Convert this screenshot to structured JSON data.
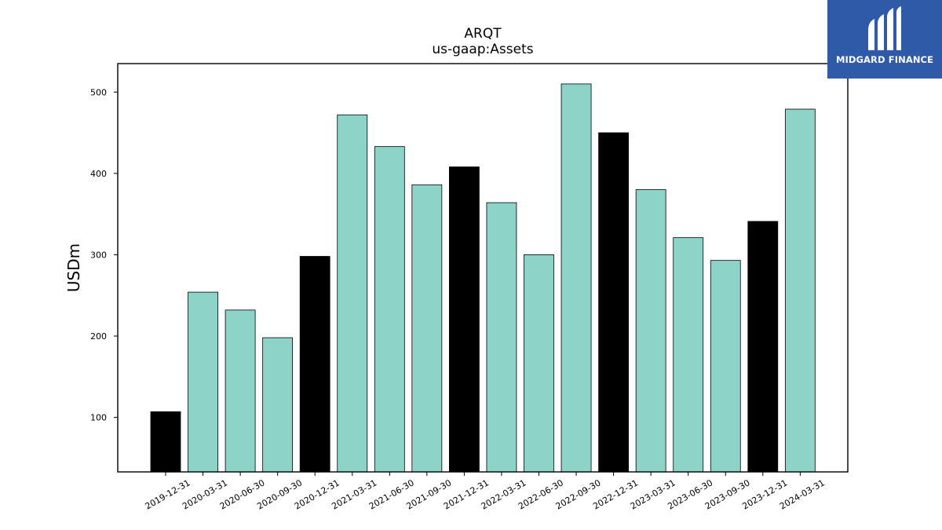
{
  "brand": {
    "name": "MIDGARD FINANCE",
    "bg_color": "#2e5aa8"
  },
  "chart_data": {
    "type": "bar",
    "title": "ARQT",
    "subtitle": "us-gaap:Assets",
    "xlabel": "",
    "ylabel": "USDm",
    "ylim": [
      33,
      535
    ],
    "yticks": [
      100,
      200,
      300,
      400,
      500
    ],
    "grid": false,
    "legend": "none",
    "colors": {
      "regular": "#8dd3c7",
      "year_end": "#000000",
      "edge": "#000000"
    },
    "categories": [
      "2019-12-31",
      "2020-03-31",
      "2020-06-30",
      "2020-09-30",
      "2020-12-31",
      "2021-03-31",
      "2021-06-30",
      "2021-09-30",
      "2021-12-31",
      "2022-03-31",
      "2022-06-30",
      "2022-09-30",
      "2022-12-31",
      "2023-03-31",
      "2023-06-30",
      "2023-09-30",
      "2023-12-31",
      "2024-03-31"
    ],
    "values": [
      107,
      254,
      232,
      198,
      298,
      472,
      433,
      386,
      408,
      364,
      300,
      510,
      450,
      380,
      321,
      293,
      341,
      479
    ],
    "highlight": [
      true,
      false,
      false,
      false,
      true,
      false,
      false,
      false,
      true,
      false,
      false,
      false,
      true,
      false,
      false,
      false,
      true,
      false
    ]
  }
}
